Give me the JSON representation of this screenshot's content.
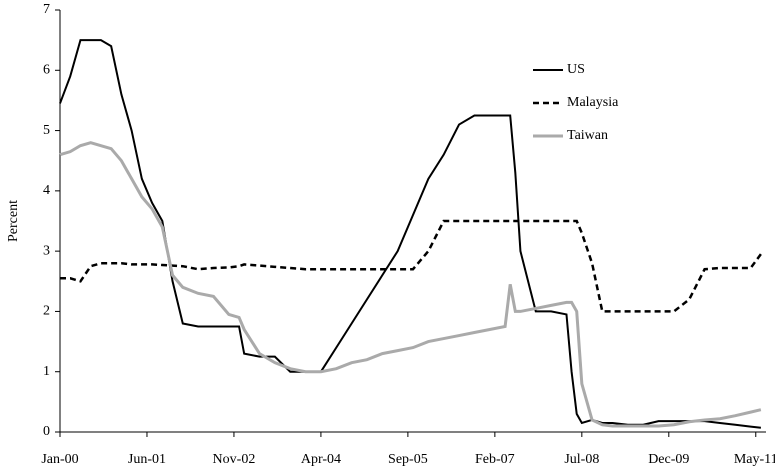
{
  "chart_data": {
    "type": "line",
    "y_label": "Percent",
    "x": [
      0,
      2,
      4,
      6,
      8,
      10,
      12,
      14,
      16,
      18,
      20,
      22,
      24,
      27,
      30,
      33,
      35,
      36,
      39,
      42,
      45,
      48,
      51,
      54,
      57,
      60,
      63,
      66,
      69,
      72,
      75,
      78,
      81,
      84,
      87,
      88,
      89,
      90,
      93,
      96,
      99,
      100,
      101,
      102,
      104,
      106,
      108,
      111,
      114,
      117,
      120,
      123,
      126,
      129,
      132,
      135,
      137
    ],
    "xlim": [
      0,
      138
    ],
    "xticks": [
      {
        "value": 0,
        "label": "Jan-00"
      },
      {
        "value": 17,
        "label": "Jun-01"
      },
      {
        "value": 34,
        "label": "Nov-02"
      },
      {
        "value": 51,
        "label": "Apr-04"
      },
      {
        "value": 68,
        "label": "Sep-05"
      },
      {
        "value": 85,
        "label": "Feb-07"
      },
      {
        "value": 102,
        "label": "Jul-08"
      },
      {
        "value": 119,
        "label": "Dec-09"
      },
      {
        "value": 136,
        "label": "May-11"
      }
    ],
    "ylim": [
      0,
      7
    ],
    "yticks": [
      0,
      1,
      2,
      3,
      4,
      5,
      6,
      7
    ],
    "grid": false,
    "legend": "upper right",
    "series": [
      {
        "name": "US",
        "color": "#000000",
        "dash": "solid",
        "values": [
          5.45,
          5.9,
          6.5,
          6.5,
          6.5,
          6.4,
          5.6,
          5.0,
          4.2,
          3.8,
          3.5,
          2.5,
          1.8,
          1.75,
          1.75,
          1.75,
          1.75,
          1.3,
          1.25,
          1.25,
          1.0,
          1.0,
          1.0,
          1.4,
          1.8,
          2.2,
          2.6,
          3.0,
          3.6,
          4.2,
          4.6,
          5.1,
          5.25,
          5.25,
          5.25,
          5.25,
          4.3,
          3.0,
          2.0,
          2.0,
          1.95,
          1.0,
          0.3,
          0.15,
          0.2,
          0.15,
          0.15,
          0.12,
          0.12,
          0.18,
          0.18,
          0.18,
          0.18,
          0.15,
          0.12,
          0.09,
          0.07
        ]
      },
      {
        "name": "Malaysia",
        "color": "#000000",
        "dash": "dashed",
        "values": [
          2.55,
          2.55,
          2.5,
          2.75,
          2.8,
          2.8,
          2.8,
          2.78,
          2.78,
          2.78,
          2.77,
          2.76,
          2.75,
          2.7,
          2.72,
          2.73,
          2.75,
          2.78,
          2.76,
          2.74,
          2.72,
          2.7,
          2.7,
          2.7,
          2.7,
          2.7,
          2.7,
          2.7,
          2.7,
          3.0,
          3.5,
          3.5,
          3.5,
          3.5,
          3.5,
          3.5,
          3.5,
          3.5,
          3.5,
          3.5,
          3.5,
          3.5,
          3.5,
          3.3,
          2.8,
          2.0,
          2.0,
          2.0,
          2.0,
          2.0,
          2.0,
          2.2,
          2.7,
          2.72,
          2.72,
          2.72,
          2.95
        ]
      },
      {
        "name": "Taiwan",
        "color": "#aaaaaa",
        "dash": "solid",
        "values": [
          4.6,
          4.65,
          4.75,
          4.8,
          4.75,
          4.7,
          4.5,
          4.2,
          3.9,
          3.7,
          3.4,
          2.6,
          2.4,
          2.3,
          2.25,
          1.95,
          1.9,
          1.7,
          1.3,
          1.15,
          1.05,
          1.0,
          1.0,
          1.05,
          1.15,
          1.2,
          1.3,
          1.35,
          1.4,
          1.5,
          1.55,
          1.6,
          1.65,
          1.7,
          1.75,
          2.45,
          2.0,
          2.0,
          2.05,
          2.1,
          2.15,
          2.15,
          2.0,
          0.8,
          0.2,
          0.12,
          0.1,
          0.1,
          0.1,
          0.1,
          0.12,
          0.17,
          0.2,
          0.22,
          0.27,
          0.33,
          0.37
        ]
      }
    ]
  }
}
